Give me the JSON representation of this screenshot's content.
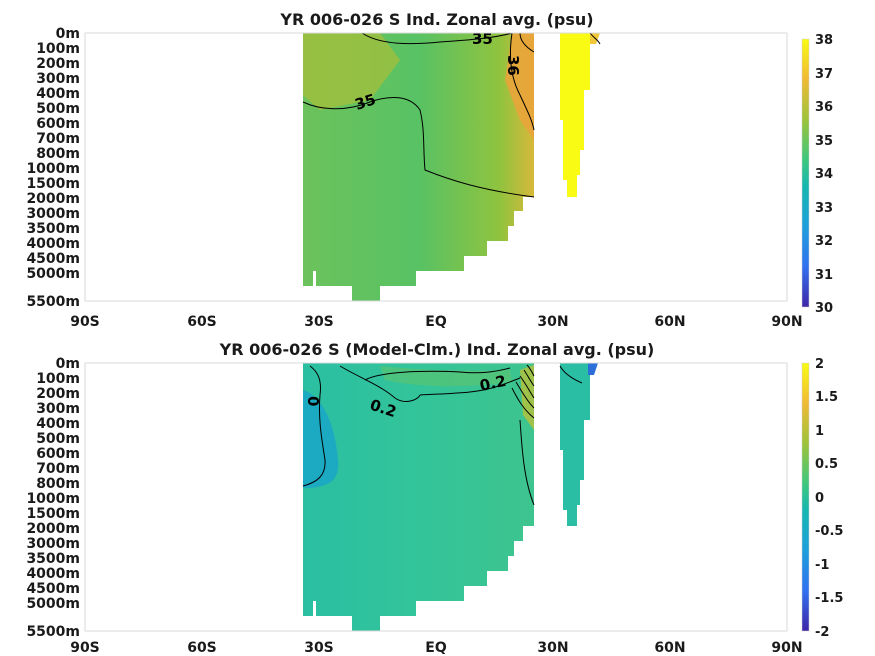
{
  "chart_data": [
    {
      "type": "heatmap",
      "title": "YR 006-026 S Ind. Zonal avg. (psu)",
      "x_ticks": [
        "90S",
        "60S",
        "30S",
        "EQ",
        "30N",
        "60N",
        "90N"
      ],
      "x_range": [
        -90,
        90
      ],
      "y_ticks": [
        "0m",
        "100m",
        "200m",
        "300m",
        "400m",
        "500m",
        "600m",
        "700m",
        "800m",
        "1000m",
        "1500m",
        "2000m",
        "3000m",
        "3500m",
        "4000m",
        "4500m",
        "5000m",
        "5500m"
      ],
      "colorbar": {
        "min": 30,
        "max": 38,
        "ticks": [
          "30",
          "31",
          "32",
          "33",
          "34",
          "35",
          "36",
          "37",
          "38"
        ]
      },
      "contour_labels": [
        "35",
        "36",
        "35"
      ],
      "grid": false
    },
    {
      "type": "heatmap",
      "title": "YR 006-026 S (Model-Clm.) Ind. Zonal avg. (psu)",
      "x_ticks": [
        "90S",
        "60S",
        "30S",
        "EQ",
        "30N",
        "60N",
        "90N"
      ],
      "x_range": [
        -90,
        90
      ],
      "y_ticks": [
        "0m",
        "100m",
        "200m",
        "300m",
        "400m",
        "500m",
        "600m",
        "700m",
        "800m",
        "1000m",
        "1500m",
        "2000m",
        "3000m",
        "3500m",
        "4000m",
        "4500m",
        "5000m",
        "5500m"
      ],
      "colorbar": {
        "min": -2,
        "max": 2,
        "ticks": [
          "-2",
          "-1.5",
          "-1",
          "-0.5",
          "0",
          "0.5",
          "1",
          "1.5",
          "2"
        ]
      },
      "contour_labels": [
        "0",
        "0.2",
        "0.2"
      ],
      "grid": false
    }
  ]
}
